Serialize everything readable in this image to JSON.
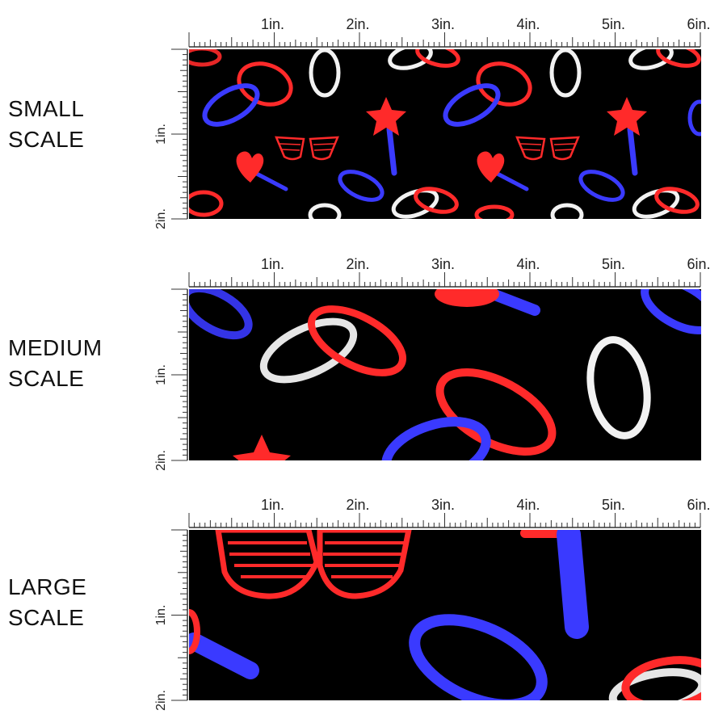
{
  "samples": [
    {
      "label_line1": "SMALL",
      "label_line2": "SCALE"
    },
    {
      "label_line1": "MEDIUM",
      "label_line2": "SCALE"
    },
    {
      "label_line1": "LARGE",
      "label_line2": "SCALE"
    }
  ],
  "ruler": {
    "h_ticks": [
      "1in.",
      "2in.",
      "3in.",
      "4in.",
      "5in.",
      "6in."
    ],
    "v_ticks": [
      "1in.",
      "2in."
    ]
  },
  "colors": {
    "background": "#000000",
    "neon_red": "#ff2a2a",
    "neon_blue": "#3a3aff",
    "neon_white": "#f2f2f2"
  },
  "motifs": [
    "glow-ring",
    "glasses",
    "heart-wand",
    "star-wand",
    "glow-stick"
  ]
}
